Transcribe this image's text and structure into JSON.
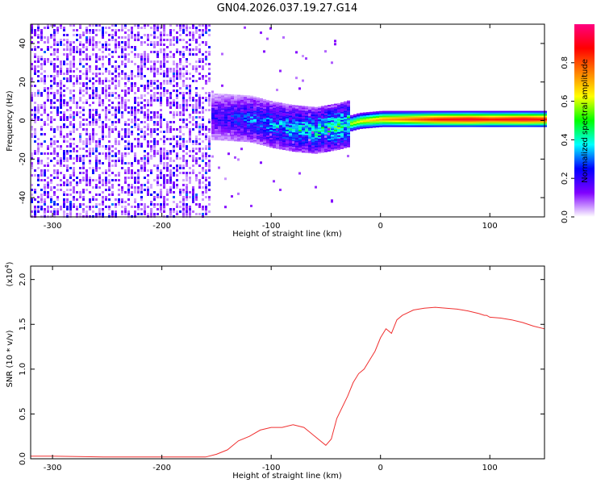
{
  "title": "GN04.2026.037.19.27.G14",
  "chart_data": [
    {
      "type": "heatmap",
      "title": "GN04.2026.037.19.27.G14",
      "xlabel": "Height of straight line (km)",
      "ylabel": "Frequency (Hz)",
      "xlim": [
        -320,
        150
      ],
      "ylim": [
        -50,
        50
      ],
      "xticks": [
        -300,
        -200,
        -100,
        0,
        100
      ],
      "yticks": [
        -40,
        -20,
        0,
        20,
        40
      ],
      "colorbar": {
        "label": "Normalized spectral amplitude",
        "range": [
          0,
          1
        ],
        "ticks": [
          0.0,
          0.2,
          0.4,
          0.6,
          0.8
        ],
        "colormap": [
          "#ffffff",
          "#8000ff",
          "#0000ff",
          "#00ffff",
          "#00ff00",
          "#ffff00",
          "#ff8000",
          "#ff0000",
          "#ff0080"
        ]
      },
      "ridge": [
        {
          "x": -150,
          "y": 2,
          "amplitude": 0.25
        },
        {
          "x": -120,
          "y": 1,
          "amplitude": 0.35
        },
        {
          "x": -100,
          "y": -2,
          "amplitude": 0.4
        },
        {
          "x": -80,
          "y": -4,
          "amplitude": 0.45
        },
        {
          "x": -60,
          "y": -5,
          "amplitude": 0.5
        },
        {
          "x": -40,
          "y": -3,
          "amplitude": 0.55
        },
        {
          "x": -20,
          "y": 0,
          "amplitude": 0.65
        },
        {
          "x": 0,
          "y": 1,
          "amplitude": 0.75
        },
        {
          "x": 20,
          "y": 1,
          "amplitude": 0.8
        },
        {
          "x": 50,
          "y": 1,
          "amplitude": 0.9
        },
        {
          "x": 80,
          "y": 1,
          "amplitude": 0.95
        },
        {
          "x": 100,
          "y": 1,
          "amplitude": 0.9
        },
        {
          "x": 130,
          "y": 1,
          "amplitude": 0.95
        },
        {
          "x": 150,
          "y": 1,
          "amplitude": 0.9
        }
      ]
    },
    {
      "type": "line",
      "xlabel": "Height of straight line (km)",
      "ylabel": "SNR (10 * v/v)",
      "y_multiplier": "(x10",
      "y_multiplier_exp": "4",
      "y_multiplier_close": ")",
      "xlim": [
        -320,
        150
      ],
      "ylim": [
        0,
        2.15
      ],
      "xticks": [
        -300,
        -200,
        -100,
        0,
        100
      ],
      "yticks": [
        0.0,
        0.5,
        1.0,
        1.5,
        2.0
      ],
      "color": "#f03030",
      "series": [
        {
          "x": [
            -320,
            -300,
            -250,
            -200,
            -160,
            -150,
            -140,
            -130,
            -120,
            -110,
            -100,
            -90,
            -80,
            -70,
            -60,
            -50,
            -45,
            -40,
            -30,
            -25,
            -20,
            -15,
            -10,
            -5,
            0,
            5,
            10,
            15,
            20,
            30,
            40,
            50,
            60,
            70,
            80,
            90,
            95,
            97,
            100,
            110,
            120,
            130,
            140,
            150
          ],
          "y": [
            0.03,
            0.03,
            0.02,
            0.02,
            0.02,
            0.05,
            0.1,
            0.2,
            0.25,
            0.32,
            0.35,
            0.35,
            0.38,
            0.35,
            0.25,
            0.15,
            0.22,
            0.45,
            0.7,
            0.85,
            0.95,
            1.0,
            1.1,
            1.2,
            1.35,
            1.45,
            1.4,
            1.55,
            1.6,
            1.66,
            1.68,
            1.69,
            1.68,
            1.67,
            1.65,
            1.62,
            1.6,
            1.6,
            1.58,
            1.57,
            1.55,
            1.52,
            1.48,
            1.45
          ]
        }
      ]
    }
  ]
}
